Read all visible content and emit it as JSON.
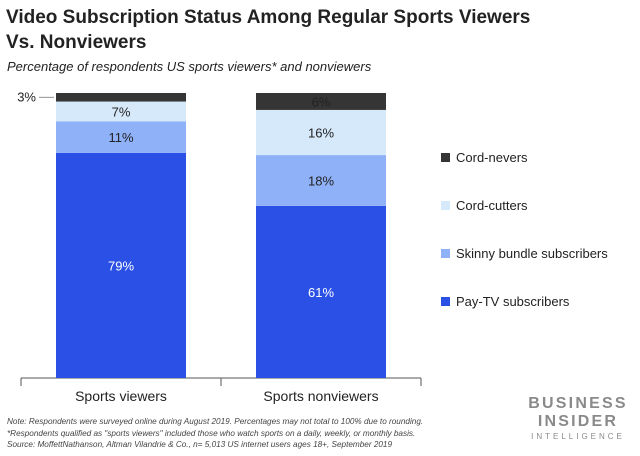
{
  "header": {
    "title_line1": "Video Subscription Status Among Regular Sports Viewers",
    "title_line2": "Vs. Nonviewers",
    "subtitle": "Percentage of respondents US sports viewers* and nonviewers"
  },
  "chart_data": {
    "type": "bar",
    "stacked": true,
    "title": "Video Subscription Status Among Regular Sports Viewers Vs. Nonviewers",
    "subtitle": "Percentage of respondents US sports viewers* and nonviewers",
    "categories": [
      "Sports viewers",
      "Sports nonviewers"
    ],
    "series": [
      {
        "name": "Pay-TV subscribers",
        "values": [
          79,
          61
        ],
        "labels": [
          "79%",
          "61%"
        ],
        "color": "#2b50e6",
        "label_color": "#ffffff"
      },
      {
        "name": "Skinny bundle subscribers",
        "values": [
          11,
          18
        ],
        "labels": [
          "11%",
          "18%"
        ],
        "color": "#8fb1f7",
        "label_color": "#222222"
      },
      {
        "name": "Cord-cutters",
        "values": [
          7,
          16
        ],
        "labels": [
          "7%",
          "16%"
        ],
        "color": "#d6e9fb",
        "label_color": "#222222"
      },
      {
        "name": "Cord-nevers",
        "values": [
          3,
          6
        ],
        "labels": [
          "3%",
          "6%"
        ],
        "color": "#353535",
        "label_color": "#222222"
      }
    ],
    "ylim": [
      0,
      100
    ],
    "xlabel": "",
    "ylabel": "",
    "legend_position": "right",
    "legend_order": [
      "Cord-nevers",
      "Cord-cutters",
      "Skinny bundle subscribers",
      "Pay-TV subscribers"
    ]
  },
  "notes": {
    "line1": "Note: Respondents were surveyed online during August 2019. Percentages may not total to 100% due to rounding.",
    "line2": "*Respondents qualified as \"sports viewers\" included those who watch sports on a daily, weekly, or monthly basis.",
    "line3": "Source: MoffettNathanson, Altman Vilandrie & Co., n= 5,013 US internet users ages 18+, September 2019"
  },
  "brand": {
    "line1": "BUSINESS",
    "line2": "INSIDER",
    "line3": "INTELLIGENCE"
  }
}
